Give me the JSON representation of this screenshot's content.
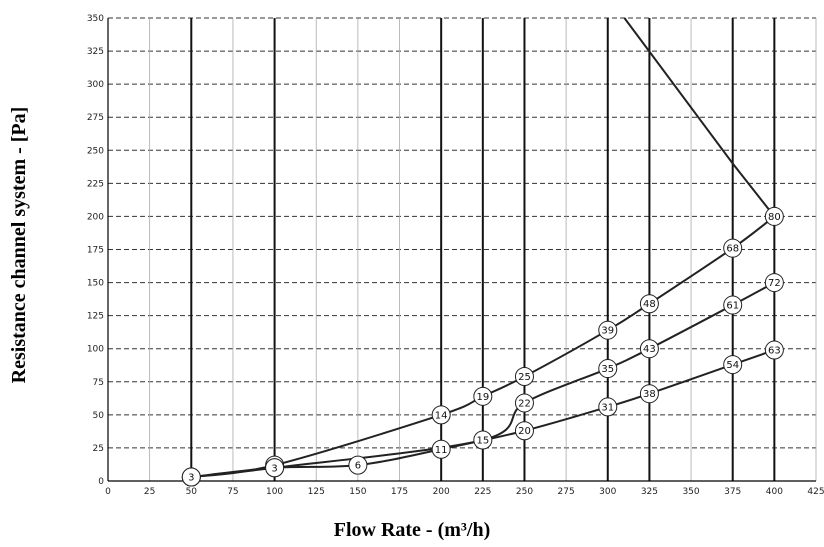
{
  "chart_data": {
    "type": "line",
    "xlabel": "Flow Rate - (m³/h)",
    "ylabel": "Resistance channel system - [Pa]",
    "xlim": [
      0,
      425
    ],
    "ylim": [
      0,
      350
    ],
    "x_ticks": [
      "0",
      "25",
      "50",
      "75",
      "100",
      "125",
      "150",
      "175",
      "200",
      "225",
      "250",
      "275",
      "300",
      "325",
      "350",
      "375",
      "400",
      "425"
    ],
    "y_ticks": [
      "0",
      "25",
      "50",
      "75",
      "100",
      "125",
      "150",
      "175",
      "200",
      "225",
      "250",
      "275",
      "300",
      "325",
      "350"
    ],
    "major_x_gridlines": [
      50,
      100,
      200,
      225,
      250,
      300,
      325,
      375,
      400
    ],
    "grid": true,
    "series": [
      {
        "points": [
          [
            50,
            3
          ],
          [
            100,
            12
          ],
          [
            200,
            50
          ],
          [
            225,
            64
          ],
          [
            250,
            79
          ],
          [
            300,
            114
          ],
          [
            325,
            134
          ],
          [
            375,
            176
          ],
          [
            400,
            200
          ]
        ],
        "labels": [
          "3",
          "3",
          "14",
          "19",
          "25",
          "39",
          "48",
          "68",
          "80"
        ]
      },
      {
        "points": [
          [
            50,
            3
          ],
          [
            100,
            10
          ],
          [
            225,
            31
          ],
          [
            250,
            59
          ],
          [
            300,
            85
          ],
          [
            325,
            100
          ],
          [
            375,
            133
          ],
          [
            400,
            150
          ]
        ],
        "labels": [
          "3",
          "3",
          "15",
          "22",
          "35",
          "43",
          "61",
          "72"
        ]
      },
      {
        "points": [
          [
            50,
            3
          ],
          [
            100,
            10
          ],
          [
            150,
            12
          ],
          [
            200,
            24
          ],
          [
            250,
            38
          ],
          [
            300,
            56
          ],
          [
            325,
            66
          ],
          [
            375,
            88
          ],
          [
            400,
            99
          ]
        ],
        "labels": [
          "3",
          "3",
          "6",
          "11",
          "20",
          "31",
          "38",
          "54",
          "63"
        ]
      },
      {
        "points": [
          [
            310,
            350
          ],
          [
            375,
            240
          ],
          [
            400,
            200
          ]
        ],
        "labels": []
      }
    ]
  }
}
